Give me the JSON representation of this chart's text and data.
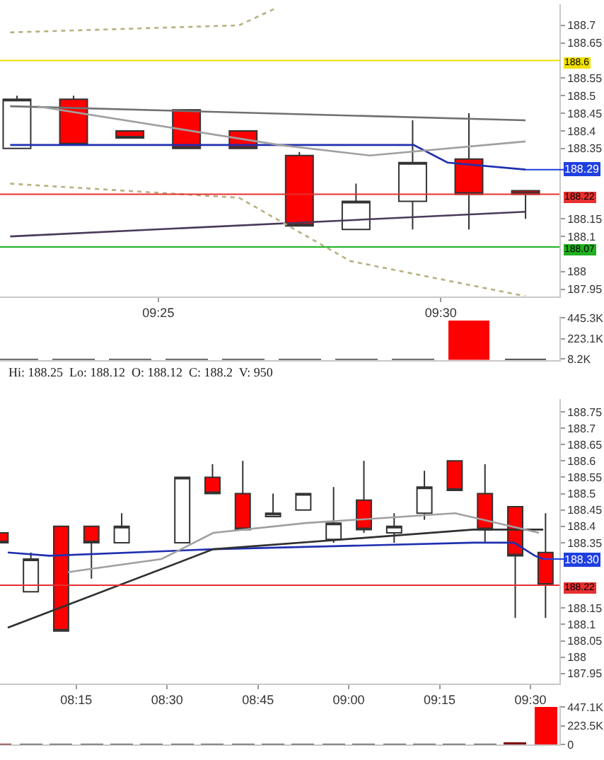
{
  "chart_data": [
    {
      "type": "candlestick",
      "x": [
        9.375,
        9.3917,
        9.4083,
        9.425,
        9.4417,
        9.4583,
        9.475,
        9.4917,
        9.5083,
        9.525
      ],
      "ohlc": [
        [
          188.35,
          188.5,
          188.35,
          188.49
        ],
        [
          188.49,
          188.5,
          188.36,
          188.36
        ],
        [
          188.4,
          188.4,
          188.38,
          188.38
        ],
        [
          188.46,
          188.46,
          188.35,
          188.35
        ],
        [
          188.4,
          188.4,
          188.35,
          188.35
        ],
        [
          188.33,
          188.34,
          188.13,
          188.13
        ],
        [
          188.12,
          188.25,
          188.12,
          188.2
        ],
        [
          188.2,
          188.43,
          188.12,
          188.31
        ],
        [
          188.32,
          188.45,
          188.12,
          188.22
        ],
        [
          188.23,
          188.23,
          188.15,
          188.22
        ]
      ],
      "colors": [
        "#ffffff",
        "#ff0000",
        "#ff0000",
        "#ff0000",
        "#ff0000",
        "#ff0000",
        "#ffffff",
        "#ffffff",
        "#ff0000",
        "#ff0000"
      ],
      "series": [
        {
          "type": "line",
          "color": "#1f2fb0",
          "x": [
            9.373,
            9.492,
            9.502,
            9.525
          ],
          "values": [
            188.36,
            188.36,
            188.31,
            188.29
          ]
        },
        {
          "type": "line",
          "color": "#4b3a5a",
          "x": [
            9.373,
            9.525
          ],
          "values": [
            188.1,
            188.17
          ]
        },
        {
          "type": "line",
          "color": "#707070",
          "x": [
            9.373,
            9.525
          ],
          "values": [
            188.47,
            188.43
          ]
        },
        {
          "type": "line",
          "color": "#a0a0a0",
          "x": [
            9.381,
            9.4524,
            9.479,
            9.525
          ],
          "values": [
            188.47,
            188.36,
            188.33,
            188.37
          ]
        },
        {
          "type": "line",
          "color": "#b8b080",
          "line_style": "dotted",
          "x": [
            9.373,
            9.4405,
            9.4516
          ],
          "values": [
            188.68,
            188.7,
            188.75
          ]
        },
        {
          "type": "line",
          "color": "#b8b080",
          "line_style": "dotted",
          "x": [
            9.373,
            9.4405,
            9.4733,
            9.525
          ],
          "values": [
            188.25,
            188.21,
            188.03,
            187.93
          ]
        }
      ],
      "ref_lines": [
        {
          "axis": "y",
          "value": 188.6,
          "label": "188.6",
          "color": "#f0e000"
        },
        {
          "axis": "y",
          "value": 188.07,
          "label": "188.07",
          "color": "#20b020"
        },
        {
          "axis": "y",
          "value": 188.22,
          "label": "188.22",
          "color": "#e83030"
        }
      ],
      "annotations": [
        {
          "text": "188.29",
          "x": 9.525,
          "y": 188.29
        }
      ],
      "xlim": [
        9.37,
        9.535
      ],
      "xticks": [
        {
          "value": 9.4167,
          "label": "09:25"
        },
        {
          "value": 9.5,
          "label": "09:30"
        }
      ],
      "ylim": [
        187.93,
        188.76
      ],
      "yticks": [
        187.95,
        188,
        188.1,
        188.15,
        188.35,
        188.4,
        188.45,
        188.5,
        188.55,
        188.65,
        188.7
      ]
    },
    {
      "type": "bar",
      "x": [
        9.375,
        9.3917,
        9.4083,
        9.425,
        9.4417,
        9.4583,
        9.475,
        9.4917,
        9.5083,
        9.525
      ],
      "values": [
        5,
        5,
        5,
        5,
        5,
        5,
        5,
        5,
        415,
        8.2
      ],
      "colors": [
        "#404040",
        "#404040",
        "#404040",
        "#404040",
        "#404040",
        "#404040",
        "#404040",
        "#404040",
        "#ff0000",
        "#202020"
      ],
      "xlim": [
        9.37,
        9.535
      ],
      "ylim": [
        0,
        460
      ],
      "yticks": [
        {
          "value": 445.3,
          "label": "445.3K"
        },
        {
          "value": 223.1,
          "label": "223.1K"
        },
        {
          "value": 8.2,
          "label": "8.2K"
        }
      ],
      "tick_labels": "y",
      "annotations": [
        "Hi: 188.25  Lo: 188.12  O: 188.12  C: 188.2  V: 950"
      ]
    },
    {
      "type": "candlestick",
      "x": [
        8.0417,
        8.125,
        8.2083,
        8.2917,
        8.375,
        8.5417,
        8.625,
        8.7083,
        8.7917,
        8.875,
        8.9583,
        9.0417,
        9.125,
        9.2083,
        9.2917,
        9.375,
        9.4583,
        9.5417
      ],
      "ohlc": [
        [
          188.38,
          188.38,
          188.35,
          188.35
        ],
        [
          188.2,
          188.32,
          188.2,
          188.3
        ],
        [
          188.4,
          188.4,
          188.08,
          188.08
        ],
        [
          188.4,
          188.4,
          188.24,
          188.35
        ],
        [
          188.35,
          188.44,
          188.35,
          188.4
        ],
        [
          188.35,
          188.55,
          188.35,
          188.55
        ],
        [
          188.55,
          188.59,
          188.5,
          188.5
        ],
        [
          188.5,
          188.6,
          188.39,
          188.39
        ],
        [
          188.43,
          188.5,
          188.43,
          188.44
        ],
        [
          188.45,
          188.5,
          188.45,
          188.5
        ],
        [
          188.36,
          188.52,
          188.35,
          188.41
        ],
        [
          188.48,
          188.6,
          188.38,
          188.39
        ],
        [
          188.38,
          188.44,
          188.35,
          188.4
        ],
        [
          188.44,
          188.57,
          188.42,
          188.52
        ],
        [
          188.6,
          188.6,
          188.51,
          188.51
        ],
        [
          188.5,
          188.59,
          188.35,
          188.39
        ],
        [
          188.46,
          188.46,
          188.12,
          188.31
        ],
        [
          188.32,
          188.44,
          188.12,
          188.22
        ]
      ],
      "colors": [
        "#ff0000",
        "#ffffff",
        "#ff0000",
        "#ff0000",
        "#ffffff",
        "#ffffff",
        "#ff0000",
        "#ff0000",
        "#ffffff",
        "#ffffff",
        "#ffffff",
        "#ff0000",
        "#ffffff",
        "#ffffff",
        "#ff0000",
        "#ff0000",
        "#ff0000",
        "#ff0000"
      ],
      "series": [
        {
          "type": "line",
          "color": "#1f2fb0",
          "x": [
            8.0614,
            8.1769,
            8.6272,
            9.3431,
            9.4547,
            9.5124,
            9.5355
          ],
          "values": [
            188.32,
            188.31,
            188.33,
            188.35,
            188.35,
            188.31,
            188.3
          ]
        },
        {
          "type": "line",
          "color": "#303030",
          "x": [
            8.0614,
            8.6272,
            9.3431,
            9.5355
          ],
          "values": [
            188.09,
            188.33,
            188.39,
            188.39
          ]
        },
        {
          "type": "line",
          "color": "#a0a0a0",
          "x": [
            8.2269,
            8.4848,
            8.6272,
            8.8812,
            9.2931,
            9.524
          ],
          "values": [
            188.26,
            188.3,
            188.38,
            188.41,
            188.44,
            188.38
          ]
        }
      ],
      "ref_lines": [
        {
          "axis": "y",
          "value": 188.22,
          "label": "188.22",
          "color": "#e83030"
        }
      ],
      "annotations": [
        {
          "text": "188.30",
          "x": 9.5355,
          "y": 188.3
        }
      ],
      "xlim": [
        8.04,
        9.58
      ],
      "xticks": [
        {
          "value": 8.25,
          "label": "08:15"
        },
        {
          "value": 8.5,
          "label": "08:30"
        },
        {
          "value": 8.75,
          "label": "08:45"
        },
        {
          "value": 9.0,
          "label": "09:00"
        },
        {
          "value": 9.25,
          "label": "09:15"
        },
        {
          "value": 9.5,
          "label": "09:30"
        }
      ],
      "ylim": [
        187.92,
        188.79
      ],
      "yticks": [
        187.95,
        188,
        188.05,
        188.1,
        188.15,
        188.35,
        188.4,
        188.45,
        188.5,
        188.55,
        188.6,
        188.65,
        188.7,
        188.75
      ]
    },
    {
      "type": "bar",
      "x": [
        8.0417,
        8.125,
        8.2083,
        8.2917,
        8.375,
        8.4583,
        8.5417,
        8.625,
        8.7083,
        8.7917,
        8.875,
        8.9583,
        9.0417,
        9.125,
        9.2083,
        9.2917,
        9.375,
        9.4583,
        9.5417
      ],
      "values": [
        5,
        5,
        5,
        5,
        5,
        5,
        5,
        5,
        5,
        5,
        5,
        5,
        5,
        5,
        5,
        5,
        5,
        12,
        447.1
      ],
      "colors": [
        "#800000",
        "#404040",
        "#404040",
        "#404040",
        "#404040",
        "#404040",
        "#404040",
        "#404040",
        "#404040",
        "#404040",
        "#404040",
        "#404040",
        "#404040",
        "#404040",
        "#404040",
        "#404040",
        "#404040",
        "#800000",
        "#ff0000"
      ],
      "xlim": [
        8.04,
        9.58
      ],
      "ylim": [
        0,
        460
      ],
      "yticks": [
        {
          "value": 447.1,
          "label": "447.1K"
        },
        {
          "value": 223.5,
          "label": "223.5K"
        },
        0
      ],
      "tick_labels": "y"
    }
  ]
}
